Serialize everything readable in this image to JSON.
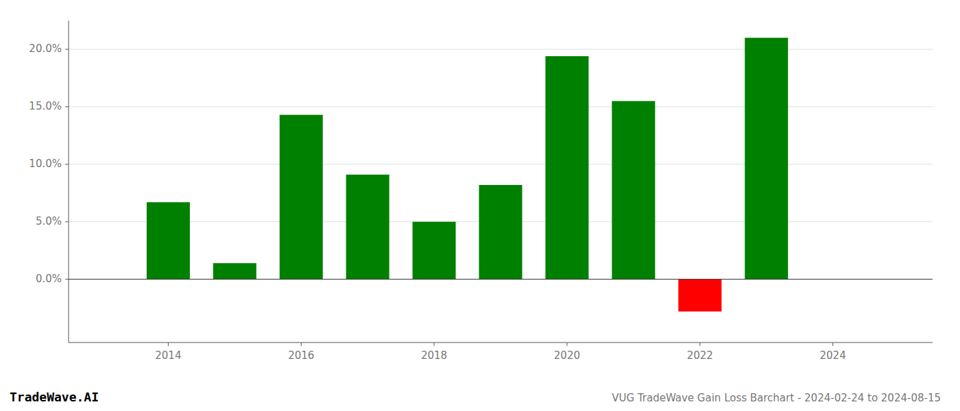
{
  "chart_data": {
    "type": "bar",
    "title": "VUG TradeWave Gain Loss Barchart - 2024-02-24 to 2024-08-15",
    "annotations": [
      "TradeWave.AI"
    ],
    "x": [
      2014,
      2015,
      2016,
      2017,
      2018,
      2019,
      2020,
      2021,
      2022,
      2023
    ],
    "values": [
      0.067,
      0.014,
      0.143,
      0.091,
      0.05,
      0.082,
      0.194,
      0.155,
      -0.028,
      0.21
    ],
    "colors": [
      "#008000",
      "#008000",
      "#008000",
      "#008000",
      "#008000",
      "#008000",
      "#008000",
      "#008000",
      "#ff0000",
      "#008000"
    ],
    "xlim": [
      2012.5,
      2025.5
    ],
    "xticks": [
      2014,
      2016,
      2018,
      2020,
      2022,
      2024
    ],
    "ylim": [
      -0.055,
      0.225
    ],
    "yticks": [
      {
        "value": 0.0,
        "label": "0.0%"
      },
      {
        "value": 0.05,
        "label": "5.0%"
      },
      {
        "value": 0.1,
        "label": "10.0%"
      },
      {
        "value": 0.15,
        "label": "15.0%"
      },
      {
        "value": 0.2,
        "label": "20.0%"
      }
    ],
    "grid": true
  }
}
